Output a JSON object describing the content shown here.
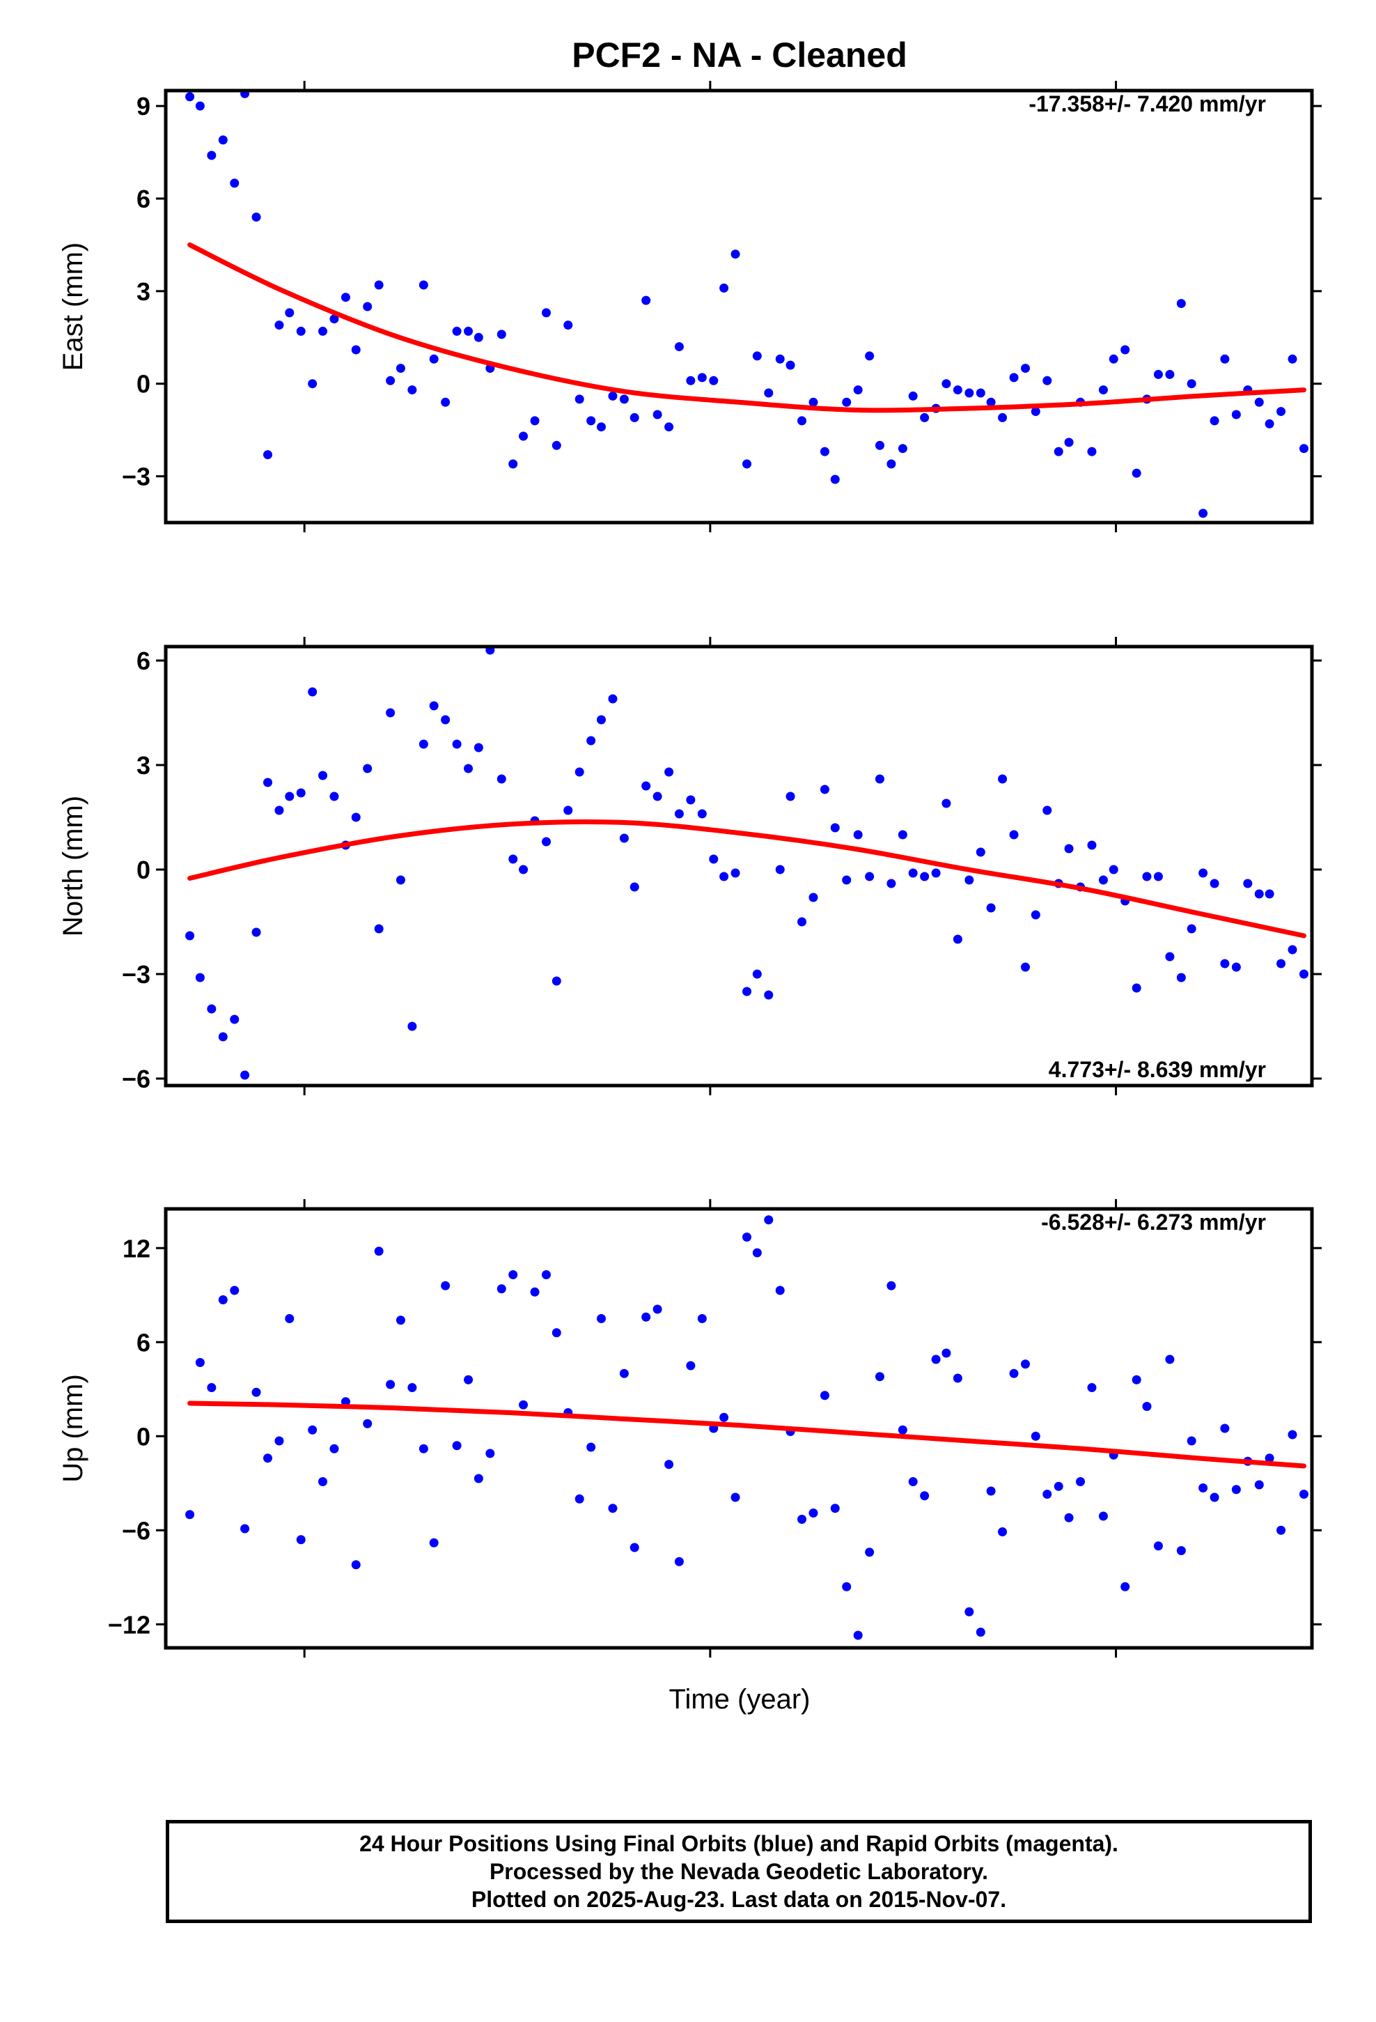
{
  "title": "PCF2  - NA - Cleaned",
  "xlabel": "Time (year)",
  "footer": {
    "line1": "24 Hour Positions Using Final Orbits (blue) and Rapid Orbits (magenta).",
    "line2": "Processed by the Nevada Geodetic Laboratory.",
    "line3": "Plotted on 2025-Aug-23. Last data on 2015-Nov-07."
  },
  "colors": {
    "points": "#0000ff",
    "fit": "#ff0000",
    "frame": "#000000"
  },
  "chart_data": [
    {
      "type": "scatter",
      "ylabel": "East (mm)",
      "rate_label": "-17.358+/- 7.420 mm/yr",
      "ylim": [
        -4.5,
        9.5
      ],
      "yticks": [
        -3,
        0,
        3,
        6,
        9
      ],
      "xlim": [
        0,
        1
      ],
      "x": [
        0.021,
        0.03,
        0.04,
        0.05,
        0.06,
        0.069,
        0.079,
        0.089,
        0.099,
        0.108,
        0.118,
        0.128,
        0.137,
        0.147,
        0.157,
        0.166,
        0.176,
        0.186,
        0.196,
        0.205,
        0.215,
        0.225,
        0.234,
        0.244,
        0.254,
        0.264,
        0.273,
        0.283,
        0.293,
        0.303,
        0.312,
        0.322,
        0.332,
        0.341,
        0.351,
        0.361,
        0.371,
        0.38,
        0.39,
        0.4,
        0.409,
        0.419,
        0.429,
        0.439,
        0.448,
        0.458,
        0.468,
        0.478,
        0.487,
        0.497,
        0.507,
        0.516,
        0.526,
        0.536,
        0.545,
        0.555,
        0.565,
        0.575,
        0.584,
        0.594,
        0.604,
        0.614,
        0.623,
        0.633,
        0.643,
        0.652,
        0.662,
        0.672,
        0.681,
        0.691,
        0.701,
        0.711,
        0.72,
        0.73,
        0.74,
        0.75,
        0.759,
        0.769,
        0.779,
        0.788,
        0.798,
        0.808,
        0.818,
        0.827,
        0.837,
        0.847,
        0.856,
        0.866,
        0.876,
        0.886,
        0.895,
        0.905,
        0.915,
        0.924,
        0.934,
        0.944,
        0.954,
        0.963,
        0.973,
        0.983,
        0.993
      ],
      "y": [
        9.3,
        9.0,
        7.4,
        7.9,
        6.5,
        9.4,
        5.4,
        -2.3,
        1.9,
        2.3,
        1.7,
        0.0,
        1.7,
        2.1,
        2.8,
        1.1,
        2.5,
        3.2,
        0.1,
        0.5,
        -0.2,
        3.2,
        0.8,
        -0.6,
        1.7,
        1.7,
        1.5,
        0.5,
        1.6,
        -2.6,
        -1.7,
        -1.2,
        2.3,
        -2.0,
        1.9,
        -0.5,
        -1.2,
        -1.4,
        -0.4,
        -0.5,
        -1.1,
        2.7,
        -1.0,
        -1.4,
        1.2,
        0.1,
        0.2,
        0.1,
        3.1,
        4.2,
        -2.6,
        0.9,
        -0.3,
        0.8,
        0.6,
        -1.2,
        -0.6,
        -2.2,
        -3.1,
        -0.6,
        -0.2,
        0.9,
        -2.0,
        -2.6,
        -2.1,
        -0.4,
        -1.1,
        -0.8,
        0.0,
        -0.2,
        -0.3,
        -0.3,
        -0.6,
        -1.1,
        0.2,
        0.5,
        -0.9,
        0.1,
        -2.2,
        -1.9,
        -0.6,
        -2.2,
        -0.2,
        0.8,
        1.1,
        -2.9,
        -0.5,
        0.3,
        0.3,
        2.6,
        0.0,
        -4.2,
        -1.2,
        0.8,
        -1.0,
        -0.2,
        -0.6,
        -1.3,
        -0.9,
        0.8,
        -2.1
      ],
      "fit": {
        "x": [
          0.021,
          0.1,
          0.2,
          0.3,
          0.4,
          0.5,
          0.6,
          0.7,
          0.8,
          0.9,
          0.993
        ],
        "y": [
          4.5,
          3.05,
          1.55,
          0.5,
          -0.25,
          -0.6,
          -0.85,
          -0.8,
          -0.65,
          -0.4,
          -0.2
        ]
      }
    },
    {
      "type": "scatter",
      "ylabel": "North (mm)",
      "rate_label": "4.773+/- 8.639 mm/yr",
      "ylim": [
        -6.2,
        6.4
      ],
      "yticks": [
        -6,
        -3,
        0,
        3,
        6
      ],
      "xlim": [
        0,
        1
      ],
      "x": [
        0.021,
        0.03,
        0.04,
        0.05,
        0.06,
        0.069,
        0.079,
        0.089,
        0.099,
        0.108,
        0.118,
        0.128,
        0.137,
        0.147,
        0.157,
        0.166,
        0.176,
        0.186,
        0.196,
        0.205,
        0.215,
        0.225,
        0.234,
        0.244,
        0.254,
        0.264,
        0.273,
        0.283,
        0.293,
        0.303,
        0.312,
        0.322,
        0.332,
        0.341,
        0.351,
        0.361,
        0.371,
        0.38,
        0.39,
        0.4,
        0.409,
        0.419,
        0.429,
        0.439,
        0.448,
        0.458,
        0.468,
        0.478,
        0.487,
        0.497,
        0.507,
        0.516,
        0.526,
        0.536,
        0.545,
        0.555,
        0.565,
        0.575,
        0.584,
        0.594,
        0.604,
        0.614,
        0.623,
        0.633,
        0.643,
        0.652,
        0.662,
        0.672,
        0.681,
        0.691,
        0.701,
        0.711,
        0.72,
        0.73,
        0.74,
        0.75,
        0.759,
        0.769,
        0.779,
        0.788,
        0.798,
        0.808,
        0.818,
        0.827,
        0.837,
        0.847,
        0.856,
        0.866,
        0.876,
        0.886,
        0.895,
        0.905,
        0.915,
        0.924,
        0.934,
        0.944,
        0.954,
        0.963,
        0.973,
        0.983,
        0.993
      ],
      "y": [
        -1.9,
        -3.1,
        -4.0,
        -4.8,
        -4.3,
        -5.9,
        -1.8,
        2.5,
        1.7,
        2.1,
        2.2,
        5.1,
        2.7,
        2.1,
        0.7,
        1.5,
        2.9,
        -1.7,
        4.5,
        -0.3,
        -4.5,
        3.6,
        4.7,
        4.3,
        3.6,
        2.9,
        3.5,
        6.3,
        2.6,
        0.3,
        0.0,
        1.4,
        0.8,
        -3.2,
        1.7,
        2.8,
        3.7,
        4.3,
        4.9,
        0.9,
        -0.5,
        2.4,
        2.1,
        2.8,
        1.6,
        2.0,
        1.6,
        0.3,
        -0.2,
        -0.1,
        -3.5,
        -3.0,
        -3.6,
        0.0,
        2.1,
        -1.5,
        -0.8,
        2.3,
        1.2,
        -0.3,
        1.0,
        -0.2,
        2.6,
        -0.4,
        1.0,
        -0.1,
        -0.2,
        -0.1,
        1.9,
        -2.0,
        -0.3,
        0.5,
        -1.1,
        2.6,
        1.0,
        -2.8,
        -1.3,
        1.7,
        -0.4,
        0.6,
        -0.5,
        0.7,
        -0.3,
        0.0,
        -0.9,
        -3.4,
        -0.2,
        -0.2,
        -2.5,
        -3.1,
        -1.7,
        -0.1,
        -0.4,
        -2.7,
        -2.8,
        -0.4,
        -0.7,
        -0.7,
        -2.7,
        -2.3,
        -3.0
      ],
      "fit": {
        "x": [
          0.021,
          0.1,
          0.2,
          0.3,
          0.4,
          0.5,
          0.6,
          0.7,
          0.8,
          0.9,
          0.993
        ],
        "y": [
          -0.25,
          0.35,
          0.95,
          1.3,
          1.35,
          1.05,
          0.6,
          0.0,
          -0.55,
          -1.25,
          -1.9
        ]
      }
    },
    {
      "type": "scatter",
      "ylabel": "Up (mm)",
      "rate_label": "-6.528+/- 6.273 mm/yr",
      "ylim": [
        -13.5,
        14.5
      ],
      "yticks": [
        -12,
        -6,
        0,
        6,
        12
      ],
      "xlim": [
        0,
        1
      ],
      "x": [
        0.021,
        0.03,
        0.04,
        0.05,
        0.06,
        0.069,
        0.079,
        0.089,
        0.099,
        0.108,
        0.118,
        0.128,
        0.137,
        0.147,
        0.157,
        0.166,
        0.176,
        0.186,
        0.196,
        0.205,
        0.215,
        0.225,
        0.234,
        0.244,
        0.254,
        0.264,
        0.273,
        0.283,
        0.293,
        0.303,
        0.312,
        0.322,
        0.332,
        0.341,
        0.351,
        0.361,
        0.371,
        0.38,
        0.39,
        0.4,
        0.409,
        0.419,
        0.429,
        0.439,
        0.448,
        0.458,
        0.468,
        0.478,
        0.487,
        0.497,
        0.507,
        0.516,
        0.526,
        0.536,
        0.545,
        0.555,
        0.565,
        0.575,
        0.584,
        0.594,
        0.604,
        0.614,
        0.623,
        0.633,
        0.643,
        0.652,
        0.662,
        0.672,
        0.681,
        0.691,
        0.701,
        0.711,
        0.72,
        0.73,
        0.74,
        0.75,
        0.759,
        0.769,
        0.779,
        0.788,
        0.798,
        0.808,
        0.818,
        0.827,
        0.837,
        0.847,
        0.856,
        0.866,
        0.876,
        0.886,
        0.895,
        0.905,
        0.915,
        0.924,
        0.934,
        0.944,
        0.954,
        0.963,
        0.973,
        0.983,
        0.993
      ],
      "y": [
        -5.0,
        4.7,
        3.1,
        8.7,
        9.3,
        -5.9,
        2.8,
        -1.4,
        -0.3,
        7.5,
        -6.6,
        0.4,
        -2.9,
        -0.8,
        2.2,
        -8.2,
        0.8,
        11.8,
        3.3,
        7.4,
        3.1,
        -0.8,
        -6.8,
        9.6,
        -0.6,
        3.6,
        -2.7,
        -1.1,
        9.4,
        10.3,
        2.0,
        9.2,
        10.3,
        6.6,
        1.5,
        -4.0,
        -0.7,
        7.5,
        -4.6,
        4.0,
        -7.1,
        7.6,
        8.1,
        -1.8,
        -8.0,
        4.5,
        7.5,
        0.5,
        1.2,
        -3.9,
        12.7,
        11.7,
        13.8,
        9.3,
        0.3,
        -5.3,
        -4.9,
        2.6,
        -4.6,
        -9.6,
        -12.7,
        -7.4,
        3.8,
        9.6,
        0.4,
        -2.9,
        -3.8,
        4.9,
        5.3,
        3.7,
        -11.2,
        -12.5,
        -3.5,
        -6.1,
        4.0,
        4.6,
        0.0,
        -3.7,
        -3.2,
        -5.2,
        -2.9,
        3.1,
        -5.1,
        -1.2,
        -9.6,
        3.6,
        1.9,
        -7.0,
        4.9,
        -7.3,
        -0.3,
        -3.3,
        -3.9,
        0.5,
        -3.4,
        -1.6,
        -3.1,
        -1.4,
        -6.0,
        0.1,
        -3.7
      ],
      "fit": {
        "x": [
          0.021,
          0.1,
          0.2,
          0.3,
          0.4,
          0.5,
          0.6,
          0.7,
          0.8,
          0.9,
          0.993
        ],
        "y": [
          2.1,
          2.0,
          1.8,
          1.5,
          1.1,
          0.7,
          0.2,
          -0.3,
          -0.8,
          -1.4,
          -1.9
        ]
      }
    }
  ]
}
